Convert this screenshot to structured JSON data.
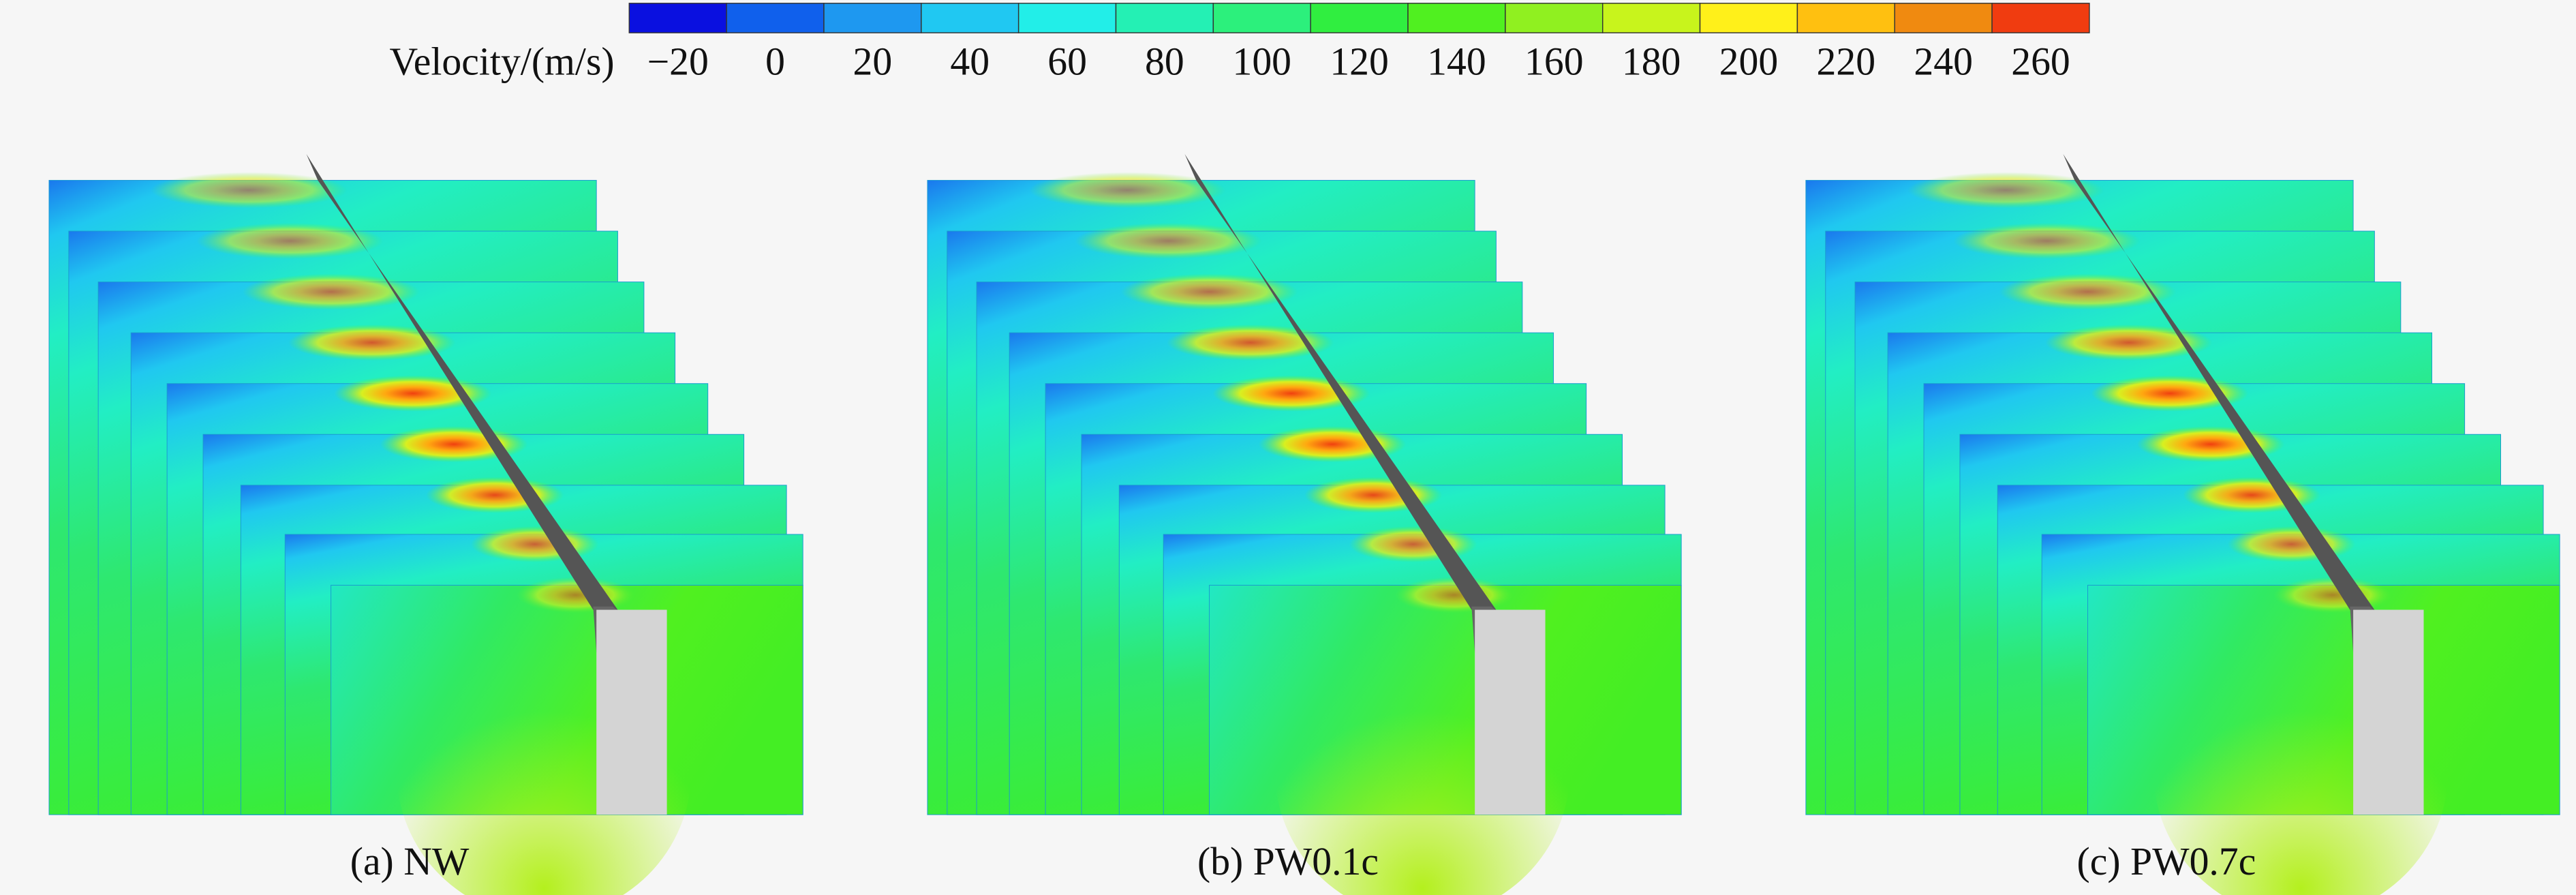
{
  "colorbar": {
    "label": "Velocity/(m/s)",
    "ticks": [
      "−20",
      "0",
      "20",
      "40",
      "60",
      "80",
      "100",
      "120",
      "140",
      "160",
      "180",
      "200",
      "220",
      "240",
      "260"
    ],
    "colors": [
      "#0a10e0",
      "#1060ec",
      "#1e98f0",
      "#20c8f2",
      "#22eee8",
      "#24f0b4",
      "#2cf07c",
      "#30ee40",
      "#50f020",
      "#90f020",
      "#c8f41c",
      "#fff01a",
      "#ffc010",
      "#f08a10",
      "#f03c10"
    ]
  },
  "panels": [
    {
      "caption": "(a) NW"
    },
    {
      "caption": "(b) PW0.1c"
    },
    {
      "caption": "(c) PW0.7c"
    }
  ]
}
